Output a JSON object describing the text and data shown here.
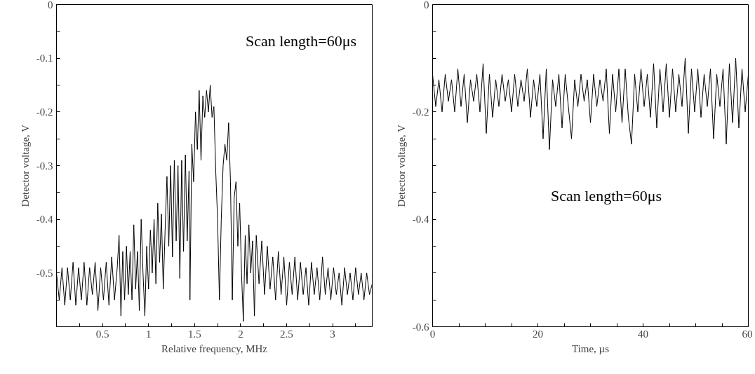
{
  "chart_data": [
    {
      "type": "line",
      "xlabel": "Relative frequency, MHz",
      "ylabel": "Detector voltage, V",
      "annotations": [
        "Scan length=60μs"
      ],
      "xlim": [
        0,
        3.43
      ],
      "ylim": [
        -0.6,
        0
      ],
      "xticks": [
        {
          "value": 0.25,
          "label": null
        },
        0.5,
        {
          "value": 0.75,
          "label": null
        },
        1,
        {
          "value": 1.25,
          "label": null
        },
        1.5,
        {
          "value": 1.75,
          "label": null
        },
        2,
        {
          "value": 2.25,
          "label": null
        },
        2.5,
        {
          "value": 2.75,
          "label": null
        },
        3,
        {
          "value": 3.25,
          "label": null
        }
      ],
      "yticks": [
        {
          "value": -0.55,
          "label": null
        },
        -0.5,
        {
          "value": -0.45,
          "label": null
        },
        -0.4,
        {
          "value": -0.35,
          "label": null
        },
        -0.3,
        {
          "value": -0.25,
          "label": null
        },
        -0.2,
        {
          "value": -0.15,
          "label": null
        },
        -0.1,
        {
          "value": -0.05,
          "label": null
        },
        0
      ],
      "series": [
        {
          "color": "#000000",
          "x": [
            0,
            0.03,
            0.06,
            0.09,
            0.12,
            0.15,
            0.18,
            0.21,
            0.24,
            0.27,
            0.3,
            0.33,
            0.36,
            0.39,
            0.42,
            0.45,
            0.48,
            0.51,
            0.54,
            0.57,
            0.6,
            0.63,
            0.66,
            0.68,
            0.7,
            0.72,
            0.74,
            0.76,
            0.78,
            0.8,
            0.82,
            0.84,
            0.86,
            0.88,
            0.9,
            0.92,
            0.94,
            0.96,
            0.98,
            1.0,
            1.02,
            1.04,
            1.06,
            1.08,
            1.1,
            1.12,
            1.14,
            1.16,
            1.18,
            1.2,
            1.22,
            1.24,
            1.26,
            1.28,
            1.3,
            1.32,
            1.34,
            1.36,
            1.38,
            1.4,
            1.42,
            1.44,
            1.45,
            1.47,
            1.49,
            1.51,
            1.53,
            1.55,
            1.57,
            1.59,
            1.61,
            1.63,
            1.65,
            1.67,
            1.69,
            1.71,
            1.73,
            1.75,
            1.77,
            1.79,
            1.81,
            1.83,
            1.85,
            1.87,
            1.89,
            1.91,
            1.93,
            1.95,
            1.97,
            1.99,
            2.01,
            2.03,
            2.05,
            2.07,
            2.09,
            2.11,
            2.13,
            2.15,
            2.17,
            2.2,
            2.23,
            2.26,
            2.29,
            2.32,
            2.35,
            2.38,
            2.41,
            2.44,
            2.47,
            2.5,
            2.53,
            2.56,
            2.59,
            2.62,
            2.65,
            2.68,
            2.71,
            2.74,
            2.77,
            2.8,
            2.83,
            2.86,
            2.89,
            2.92,
            2.95,
            2.98,
            3.01,
            3.04,
            3.07,
            3.1,
            3.13,
            3.16,
            3.19,
            3.22,
            3.25,
            3.28,
            3.31,
            3.34,
            3.37,
            3.4,
            3.43
          ],
          "values": [
            -0.5,
            -0.55,
            -0.49,
            -0.56,
            -0.49,
            -0.55,
            -0.48,
            -0.56,
            -0.49,
            -0.55,
            -0.48,
            -0.56,
            -0.49,
            -0.54,
            -0.48,
            -0.57,
            -0.49,
            -0.55,
            -0.48,
            -0.56,
            -0.47,
            -0.55,
            -0.49,
            -0.43,
            -0.58,
            -0.46,
            -0.55,
            -0.45,
            -0.54,
            -0.46,
            -0.55,
            -0.41,
            -0.53,
            -0.46,
            -0.57,
            -0.4,
            -0.5,
            -0.58,
            -0.45,
            -0.53,
            -0.42,
            -0.5,
            -0.4,
            -0.52,
            -0.37,
            -0.48,
            -0.39,
            -0.53,
            -0.42,
            -0.32,
            -0.45,
            -0.3,
            -0.47,
            -0.29,
            -0.44,
            -0.3,
            -0.51,
            -0.29,
            -0.46,
            -0.28,
            -0.44,
            -0.31,
            -0.55,
            -0.26,
            -0.33,
            -0.2,
            -0.27,
            -0.16,
            -0.29,
            -0.17,
            -0.21,
            -0.16,
            -0.2,
            -0.15,
            -0.21,
            -0.19,
            -0.31,
            -0.4,
            -0.55,
            -0.4,
            -0.3,
            -0.26,
            -0.29,
            -0.22,
            -0.33,
            -0.55,
            -0.36,
            -0.33,
            -0.45,
            -0.37,
            -0.5,
            -0.59,
            -0.43,
            -0.52,
            -0.41,
            -0.5,
            -0.44,
            -0.58,
            -0.43,
            -0.52,
            -0.44,
            -0.54,
            -0.45,
            -0.53,
            -0.47,
            -0.55,
            -0.46,
            -0.54,
            -0.47,
            -0.56,
            -0.48,
            -0.54,
            -0.47,
            -0.55,
            -0.48,
            -0.54,
            -0.49,
            -0.56,
            -0.48,
            -0.54,
            -0.49,
            -0.55,
            -0.47,
            -0.54,
            -0.49,
            -0.55,
            -0.49,
            -0.54,
            -0.5,
            -0.56,
            -0.49,
            -0.54,
            -0.5,
            -0.55,
            -0.49,
            -0.54,
            -0.5,
            -0.55,
            -0.5,
            -0.54,
            -0.52
          ]
        }
      ]
    },
    {
      "type": "line",
      "xlabel": "Time, µs",
      "ylabel": "Detector voltage, V",
      "annotations": [
        "Scan length=60μs"
      ],
      "xlim": [
        0,
        60
      ],
      "ylim": [
        -0.6,
        0
      ],
      "xticks": [
        0,
        {
          "value": 5,
          "label": null
        },
        {
          "value": 10,
          "label": null
        },
        {
          "value": 15,
          "label": null
        },
        20,
        {
          "value": 25,
          "label": null
        },
        {
          "value": 30,
          "label": null
        },
        {
          "value": 35,
          "label": null
        },
        40,
        {
          "value": 45,
          "label": null
        },
        {
          "value": 50,
          "label": null
        },
        {
          "value": 55,
          "label": null
        },
        60
      ],
      "yticks": [
        -0.6,
        {
          "value": -0.55,
          "label": null
        },
        {
          "value": -0.5,
          "label": null
        },
        {
          "value": -0.45,
          "label": null
        },
        -0.4,
        {
          "value": -0.35,
          "label": null
        },
        {
          "value": -0.3,
          "label": null
        },
        {
          "value": -0.25,
          "label": null
        },
        -0.2,
        {
          "value": -0.15,
          "label": null
        },
        {
          "value": -0.1,
          "label": null
        },
        {
          "value": -0.05,
          "label": null
        },
        0
      ],
      "series": [
        {
          "color": "#000000",
          "x": [
            0,
            0.6,
            1.2,
            1.8,
            2.4,
            3.0,
            3.6,
            4.2,
            4.8,
            5.4,
            6.0,
            6.6,
            7.2,
            7.8,
            8.4,
            9.0,
            9.6,
            10.2,
            10.8,
            11.4,
            12.0,
            12.6,
            13.2,
            13.8,
            14.4,
            15.0,
            15.6,
            16.2,
            16.8,
            17.4,
            18.0,
            18.6,
            19.2,
            19.8,
            20.4,
            21.0,
            21.6,
            22.2,
            22.8,
            23.4,
            24.0,
            24.6,
            25.2,
            25.8,
            26.4,
            27.0,
            27.6,
            28.2,
            28.8,
            29.4,
            30.0,
            30.6,
            31.2,
            31.8,
            32.4,
            33.0,
            33.6,
            34.2,
            34.8,
            35.4,
            36.0,
            36.6,
            37.2,
            37.8,
            38.4,
            39.0,
            39.6,
            40.2,
            40.8,
            41.4,
            42.0,
            42.6,
            43.2,
            43.8,
            44.4,
            45.0,
            45.6,
            46.2,
            46.8,
            47.4,
            48.0,
            48.6,
            49.2,
            49.8,
            50.4,
            51.0,
            51.6,
            52.2,
            52.8,
            53.4,
            54.0,
            54.6,
            55.2,
            55.8,
            56.4,
            57.0,
            57.6,
            58.2,
            58.8,
            59.4,
            60.0
          ],
          "values": [
            -0.13,
            -0.19,
            -0.14,
            -0.2,
            -0.13,
            -0.18,
            -0.14,
            -0.2,
            -0.12,
            -0.19,
            -0.13,
            -0.22,
            -0.14,
            -0.18,
            -0.13,
            -0.2,
            -0.11,
            -0.24,
            -0.13,
            -0.21,
            -0.14,
            -0.19,
            -0.13,
            -0.18,
            -0.14,
            -0.2,
            -0.13,
            -0.19,
            -0.14,
            -0.18,
            -0.12,
            -0.21,
            -0.14,
            -0.19,
            -0.13,
            -0.25,
            -0.12,
            -0.27,
            -0.14,
            -0.19,
            -0.13,
            -0.23,
            -0.13,
            -0.19,
            -0.25,
            -0.14,
            -0.19,
            -0.13,
            -0.18,
            -0.14,
            -0.22,
            -0.13,
            -0.19,
            -0.14,
            -0.18,
            -0.12,
            -0.24,
            -0.13,
            -0.2,
            -0.12,
            -0.22,
            -0.12,
            -0.21,
            -0.26,
            -0.13,
            -0.2,
            -0.12,
            -0.19,
            -0.13,
            -0.21,
            -0.11,
            -0.23,
            -0.12,
            -0.2,
            -0.11,
            -0.21,
            -0.12,
            -0.2,
            -0.13,
            -0.19,
            -0.1,
            -0.24,
            -0.12,
            -0.2,
            -0.12,
            -0.21,
            -0.13,
            -0.19,
            -0.12,
            -0.25,
            -0.13,
            -0.19,
            -0.12,
            -0.26,
            -0.11,
            -0.22,
            -0.1,
            -0.23,
            -0.12,
            -0.2,
            -0.13
          ]
        }
      ]
    }
  ]
}
